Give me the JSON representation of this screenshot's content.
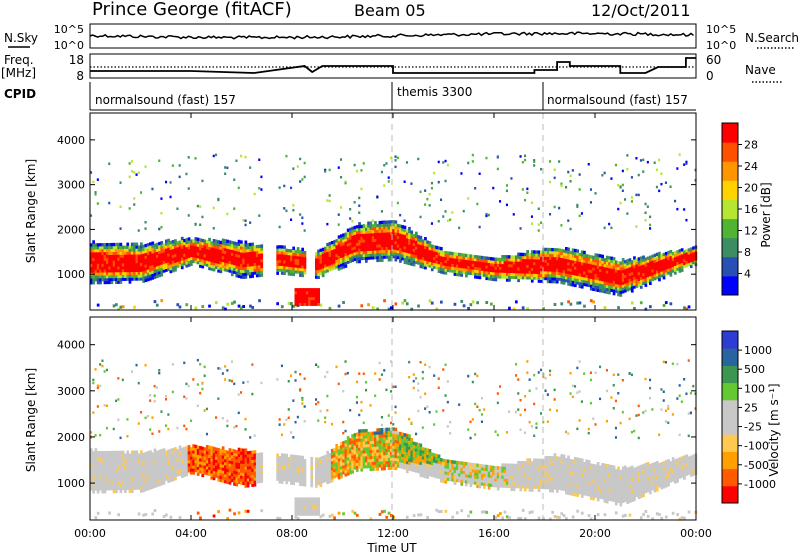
{
  "header": {
    "station": "Prince George (fitACF)",
    "beam": "Beam 05",
    "date": "12/Oct/2011"
  },
  "params": {
    "nsky_label": "N.Sky",
    "nsearch_label": "N.Search",
    "freq_label_1": "Freq.",
    "freq_label_2": "[MHz]",
    "nave_label": "Nave",
    "cpid_label": "CPID",
    "left_ticks_top": [
      "10^5",
      "10^0"
    ],
    "right_ticks_top": [
      "10^5",
      "10^0"
    ],
    "left_ticks_freq": [
      "18",
      "8"
    ],
    "right_ticks_freq": [
      "60",
      "0"
    ],
    "cpid_segments": [
      {
        "start": 0,
        "end": 12,
        "label": "normalsound (fast) 157"
      },
      {
        "start": 12,
        "end": 18,
        "label": "themis 3300"
      },
      {
        "start": 18,
        "end": 24,
        "label": "normalsound (fast) 157"
      }
    ]
  },
  "chart_data": [
    {
      "type": "heatmap",
      "name": "power",
      "xlabel": "",
      "ylabel": "Slant Range [km]",
      "xlim": [
        0,
        24
      ],
      "ylim": [
        200,
        4600
      ],
      "yticks": [
        1000,
        2000,
        3000,
        4000
      ],
      "colorbar": {
        "label": "Power [dB]",
        "ticks": [
          "28",
          "24",
          "20",
          "16",
          "12",
          "8",
          "4"
        ],
        "colors": [
          "#0000ff",
          "#2850b4",
          "#3c8c64",
          "#50b432",
          "#b4e632",
          "#ffd200",
          "#ff9600",
          "#ff5000",
          "#ff0000"
        ]
      },
      "main_band": [
        {
          "t": 0,
          "lo": 780,
          "hi": 1700
        },
        {
          "t": 2,
          "lo": 800,
          "hi": 1650
        },
        {
          "t": 4,
          "lo": 1200,
          "hi": 1800
        },
        {
          "t": 6,
          "lo": 900,
          "hi": 1700
        },
        {
          "t": 7.5,
          "lo": 1000,
          "hi": 1600
        },
        {
          "t": 9,
          "lo": 900,
          "hi": 1500
        },
        {
          "t": 10.5,
          "lo": 1250,
          "hi": 2100
        },
        {
          "t": 12,
          "lo": 1300,
          "hi": 2200
        },
        {
          "t": 14,
          "lo": 1000,
          "hi": 1500
        },
        {
          "t": 16,
          "lo": 850,
          "hi": 1350
        },
        {
          "t": 18.5,
          "lo": 800,
          "hi": 1600
        },
        {
          "t": 21,
          "lo": 500,
          "hi": 1300
        },
        {
          "t": 24,
          "lo": 1200,
          "hi": 1600
        }
      ]
    },
    {
      "type": "heatmap",
      "name": "velocity",
      "xlabel": "Time UT",
      "ylabel": "Slant Range [km]",
      "xlim": [
        0,
        24
      ],
      "ylim": [
        200,
        4600
      ],
      "xticks": [
        "00:00",
        "04:00",
        "08:00",
        "12:00",
        "16:00",
        "20:00",
        "00:00"
      ],
      "yticks": [
        1000,
        2000,
        3000,
        4000
      ],
      "colorbar": {
        "label": "Velocity [m s⁻¹]",
        "ticks": [
          "1000",
          "500",
          "100",
          "25",
          "-25",
          "-100",
          "-500",
          "-1000"
        ],
        "colors": [
          "#ff0000",
          "#ff5a00",
          "#ffa000",
          "#ffc850",
          "#c8c8c8",
          "#c8c8c8",
          "#64c832",
          "#3c9650",
          "#2864a0",
          "#2d3cd2"
        ]
      }
    }
  ],
  "footer": {
    "time_label": "Time UT"
  }
}
